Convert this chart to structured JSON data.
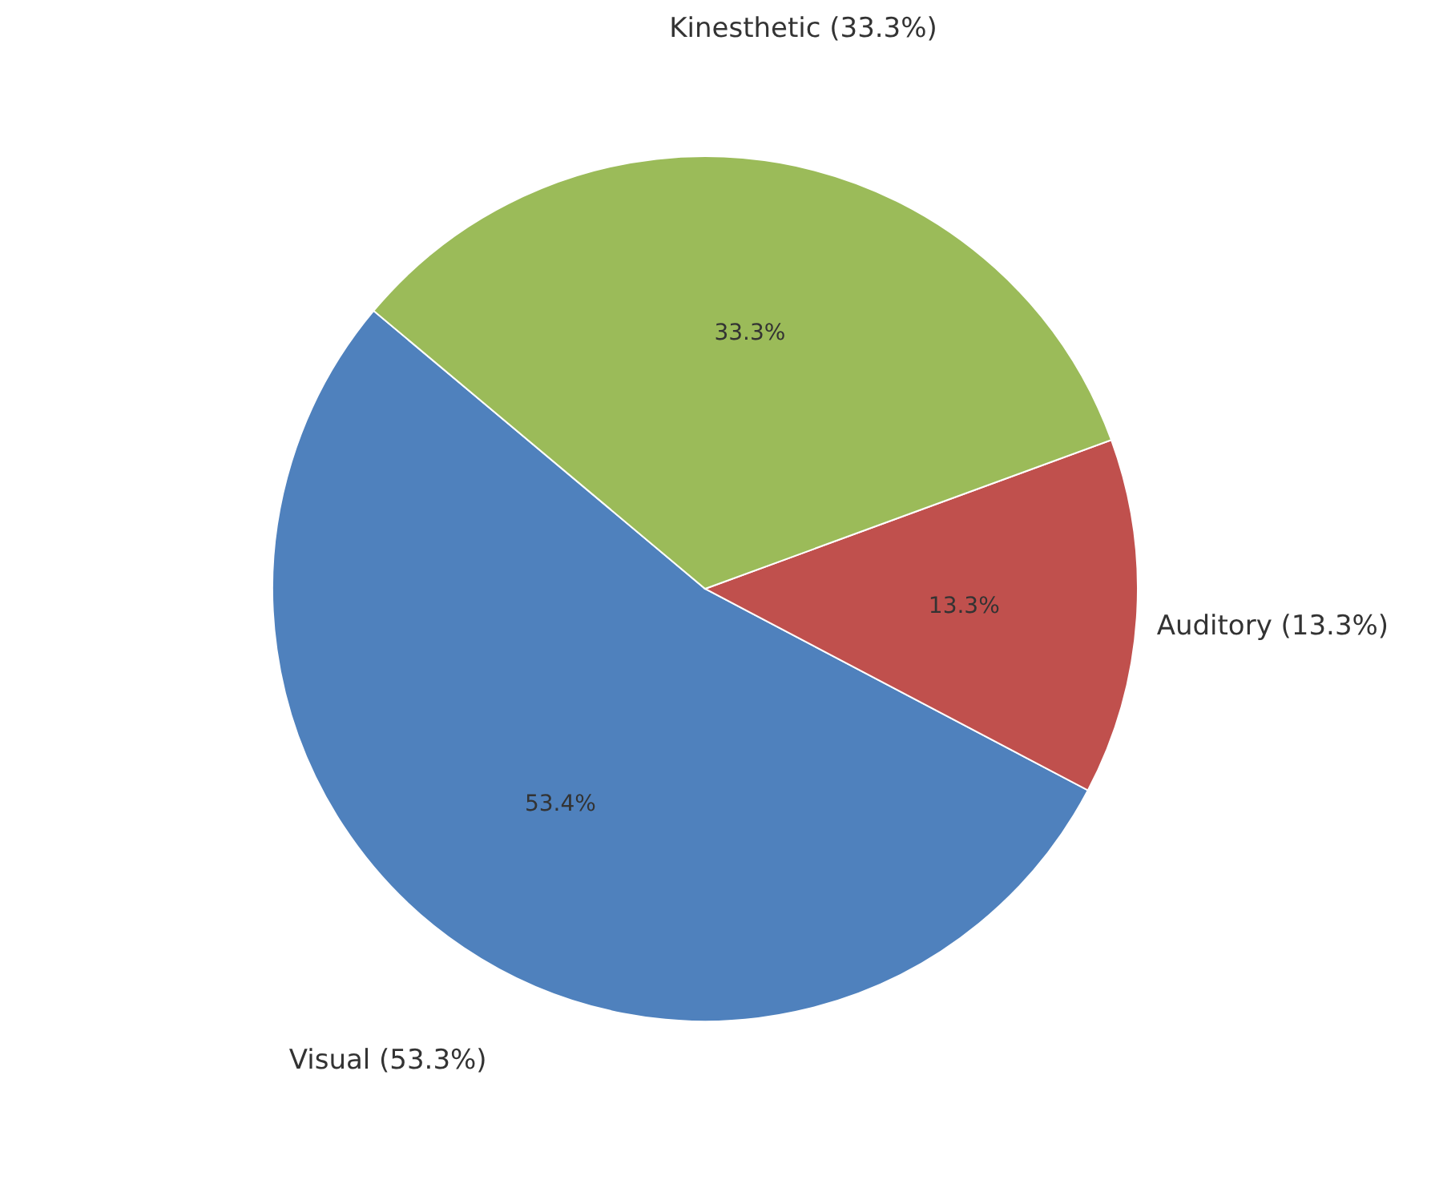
{
  "chart_data": {
    "type": "pie",
    "categories": [
      "Visual (53.3%)",
      "Auditory (13.3%)",
      "Kinesthetic (33.3%)"
    ],
    "values": [
      53.4,
      13.3,
      33.3
    ],
    "colors": [
      "#4f81bd",
      "#c0504d",
      "#9bbb59"
    ],
    "value_labels": [
      "53.4%",
      "13.3%",
      "33.3%"
    ],
    "legend": false
  }
}
